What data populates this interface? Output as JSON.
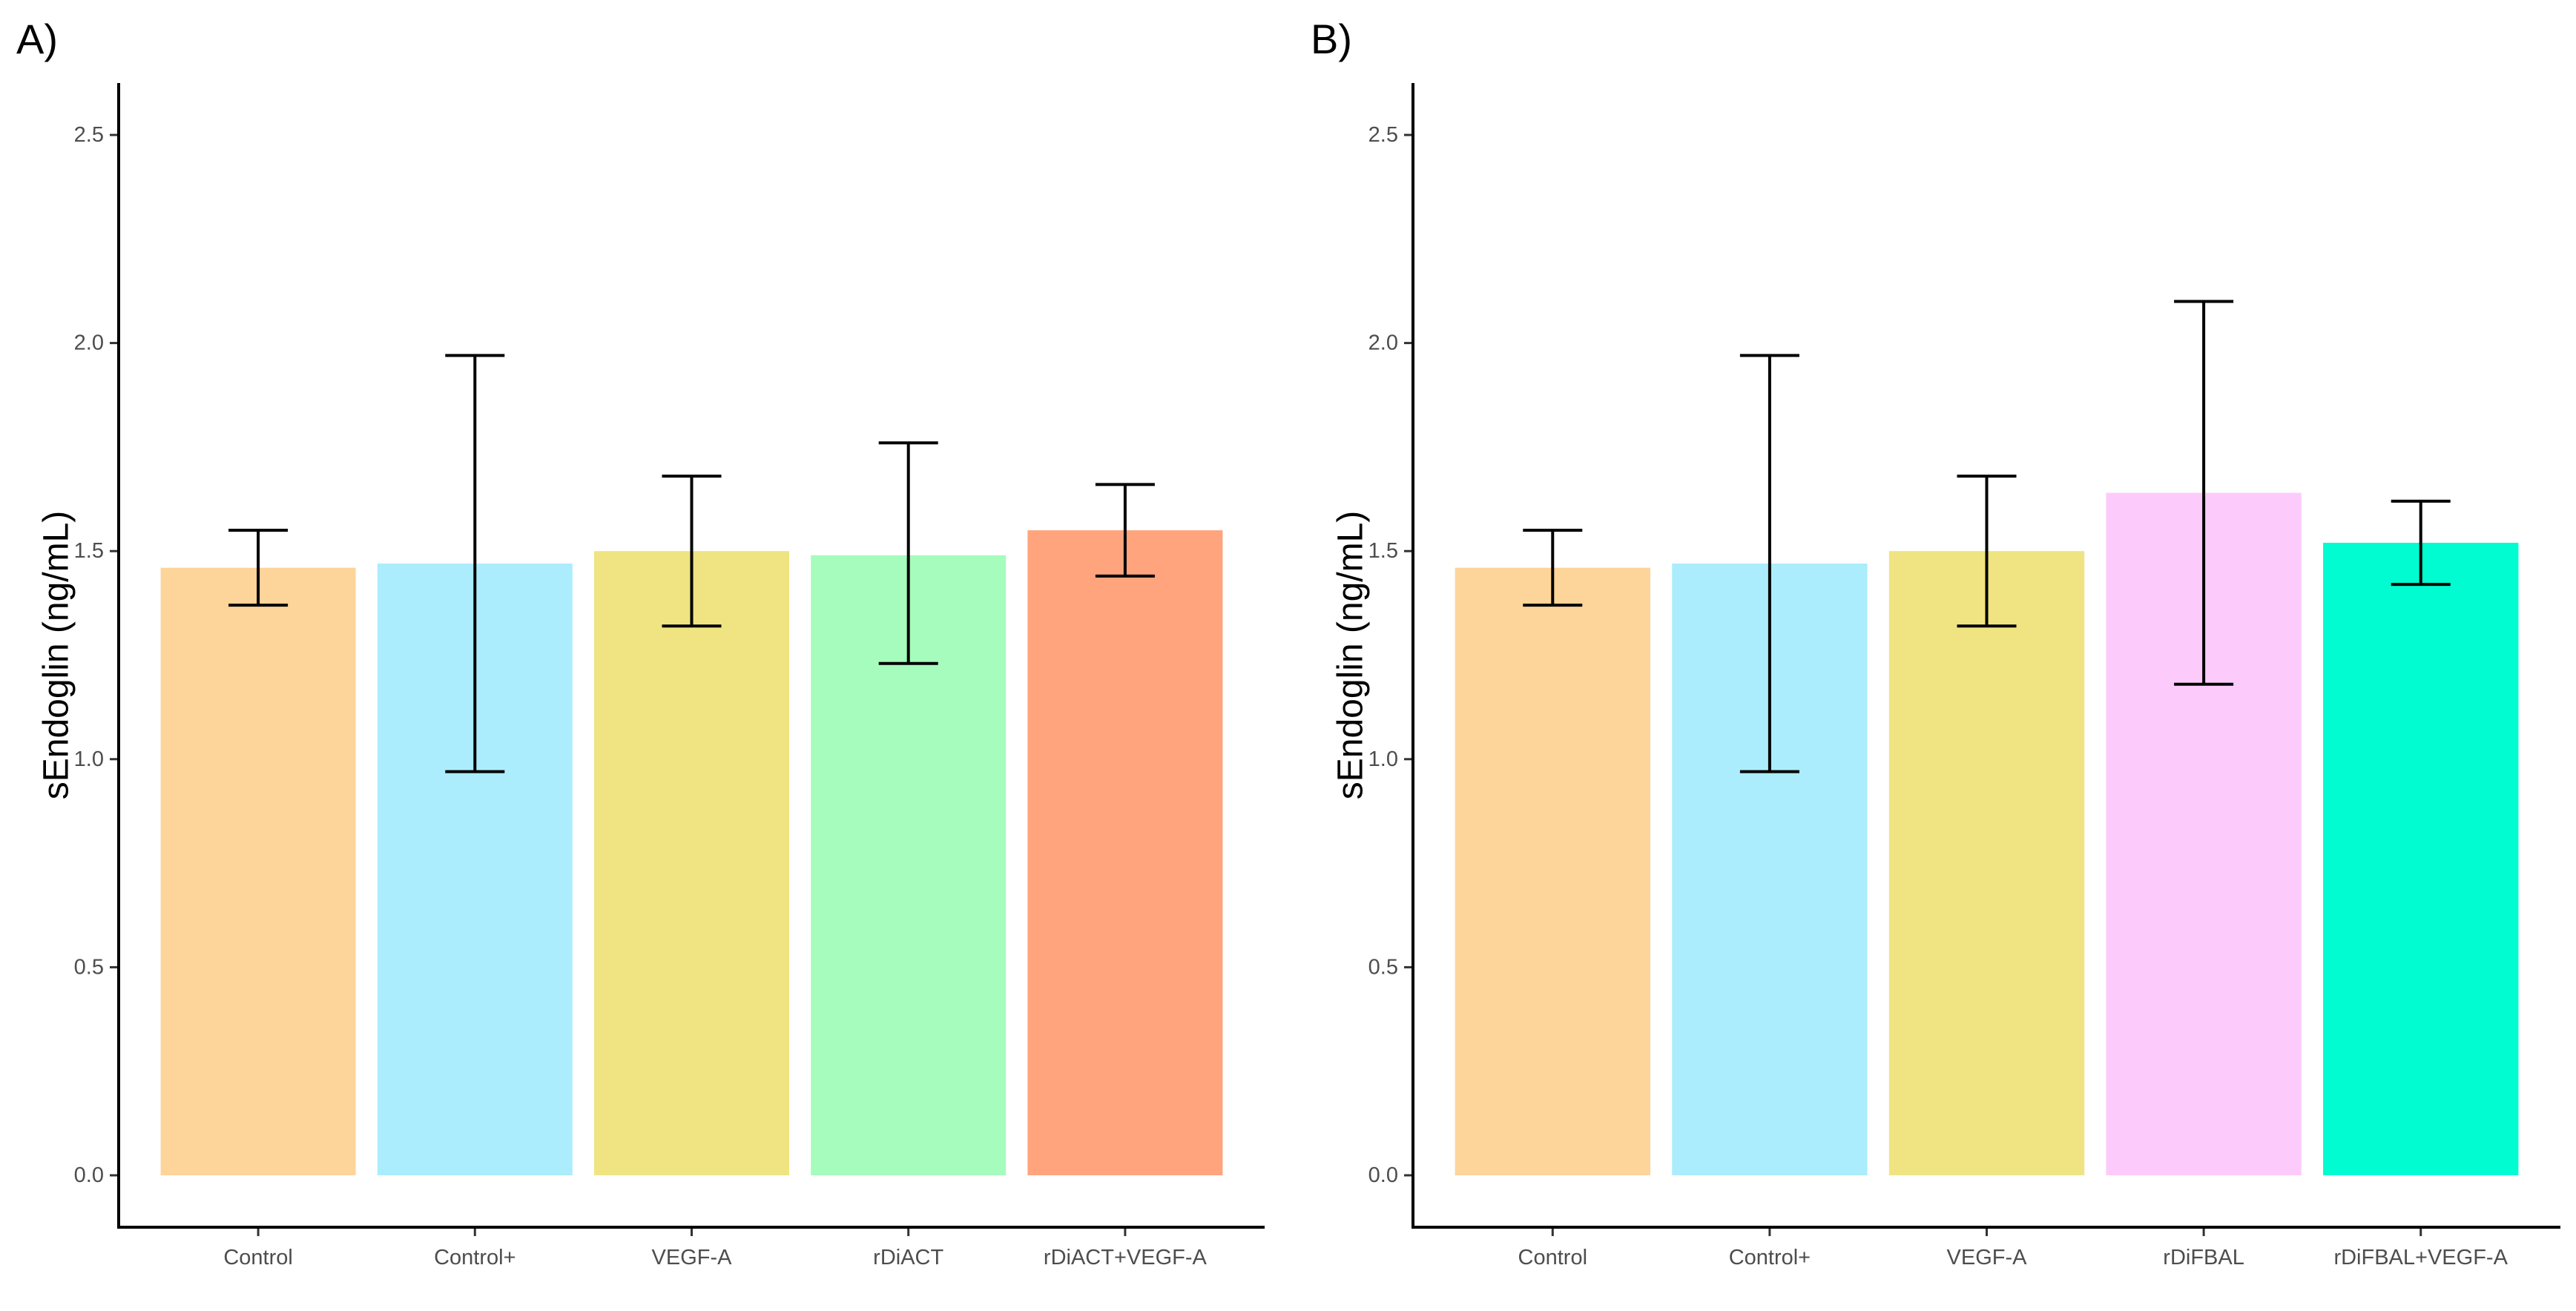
{
  "chart_data": [
    {
      "panel_label": "A)",
      "type": "bar",
      "title": "",
      "xlabel": "",
      "ylabel": "sEndoglin (ng/mL)",
      "ylim": [
        0,
        2.5
      ],
      "yticks": [
        0.0,
        0.5,
        1.0,
        1.5,
        2.0,
        2.5
      ],
      "ytick_labels": [
        "0.0",
        "0.5",
        "1.0",
        "1.5",
        "2.0",
        "2.5"
      ],
      "grid": false,
      "categories": [
        "Control",
        "Control+",
        "VEGF-A",
        "rDiACT",
        "rDiACT+VEGF-A"
      ],
      "values": [
        1.46,
        1.47,
        1.5,
        1.49,
        1.55
      ],
      "error_low": [
        1.37,
        0.97,
        1.32,
        1.23,
        1.44
      ],
      "error_high": [
        1.55,
        1.97,
        1.68,
        1.76,
        1.66
      ],
      "colors": [
        "#FDD49A",
        "#ABEDFC",
        "#F0E482",
        "#A5FCBC",
        "#FFA47C"
      ]
    },
    {
      "panel_label": "B)",
      "type": "bar",
      "title": "",
      "xlabel": "",
      "ylabel": "sEndoglin (ng/mL)",
      "ylim": [
        0,
        2.5
      ],
      "yticks": [
        0.0,
        0.5,
        1.0,
        1.5,
        2.0,
        2.5
      ],
      "ytick_labels": [
        "0.0",
        "0.5",
        "1.0",
        "1.5",
        "2.0",
        "2.5"
      ],
      "grid": false,
      "categories": [
        "Control",
        "Control+",
        "VEGF-A",
        "rDiFBAL",
        "rDiFBAL+VEGF-A"
      ],
      "values": [
        1.46,
        1.47,
        1.5,
        1.64,
        1.52
      ],
      "error_low": [
        1.37,
        0.97,
        1.32,
        1.18,
        1.42
      ],
      "error_high": [
        1.55,
        1.97,
        1.68,
        2.1,
        1.62
      ],
      "colors": [
        "#FDD49A",
        "#ABEDFC",
        "#F0E482",
        "#FDCBFB",
        "#00FCD0"
      ]
    }
  ]
}
